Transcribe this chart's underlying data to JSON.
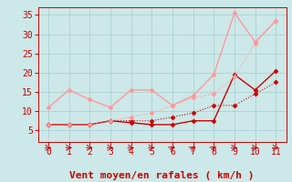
{
  "x": [
    0,
    1,
    2,
    3,
    4,
    5,
    6,
    7,
    8,
    9,
    10,
    11
  ],
  "lines": [
    {
      "y": [
        6.5,
        6.5,
        6.5,
        7.5,
        7.0,
        6.5,
        6.5,
        7.5,
        7.5,
        19.5,
        15.5,
        20.5
      ],
      "color": "#cc0000",
      "style": "-",
      "marker": "D",
      "markersize": 2.5,
      "linewidth": 1.0
    },
    {
      "y": [
        6.5,
        6.5,
        6.5,
        7.5,
        7.5,
        7.5,
        8.5,
        9.5,
        11.5,
        11.5,
        14.5,
        17.5
      ],
      "color": "#cc0000",
      "style": ":",
      "marker": "D",
      "markersize": 2.5,
      "linewidth": 0.8
    },
    {
      "y": [
        11.0,
        15.5,
        13.0,
        11.0,
        15.5,
        15.5,
        11.5,
        14.0,
        19.5,
        35.5,
        28.0,
        33.5
      ],
      "color": "#ff9999",
      "style": "-",
      "marker": "D",
      "markersize": 2.5,
      "linewidth": 1.0
    },
    {
      "y": [
        6.5,
        6.5,
        6.5,
        7.5,
        8.5,
        9.5,
        11.5,
        13.5,
        14.5,
        19.0,
        27.5,
        33.5
      ],
      "color": "#ff9999",
      "style": ":",
      "marker": "D",
      "markersize": 2.5,
      "linewidth": 0.8
    }
  ],
  "arrow_types": [
    0,
    0,
    0,
    0,
    0,
    0,
    1,
    1,
    1,
    0,
    0,
    0
  ],
  "xlabel": "Vent moyen/en rafales ( km/h )",
  "ylim": [
    2,
    37
  ],
  "xlim": [
    -0.5,
    11.5
  ],
  "yticks": [
    5,
    10,
    15,
    20,
    25,
    30,
    35
  ],
  "xticks": [
    0,
    1,
    2,
    3,
    4,
    5,
    6,
    7,
    8,
    9,
    10,
    11
  ],
  "bg_color": "#cce8e8",
  "grid_color": "#aacccc",
  "axis_color": "#cc0000",
  "label_color": "#cc0000",
  "tick_color": "#cc0000",
  "xlabel_fontsize": 8,
  "tick_fontsize": 7
}
